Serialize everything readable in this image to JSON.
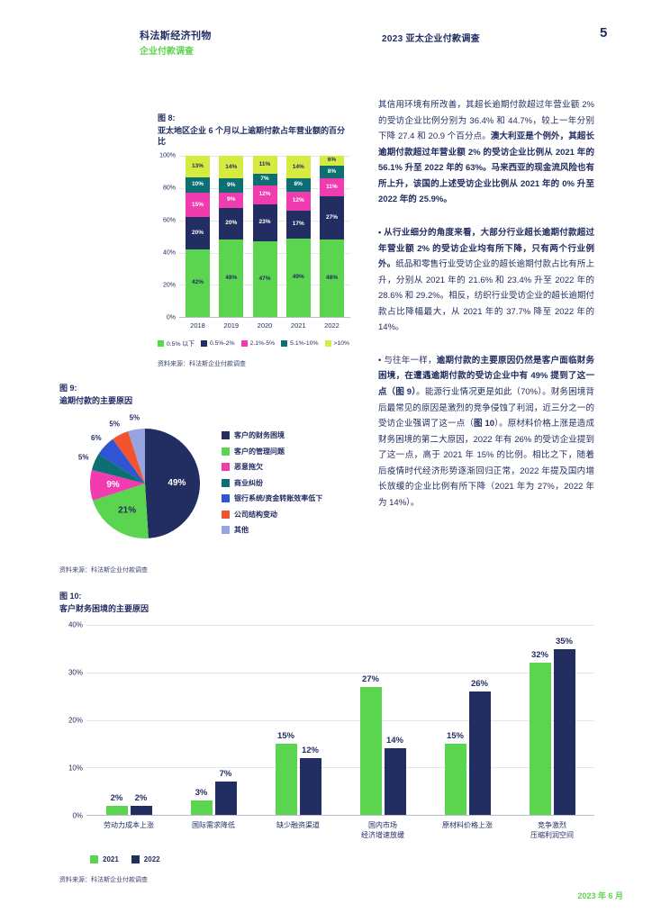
{
  "header": {
    "publication": "科法斯经济刊物",
    "subtitle": "企业付款调查",
    "report_title": "2023 亚太企业付款调查",
    "page_number": "5"
  },
  "colors": {
    "navy": "#222D62",
    "green": "#5BD54F",
    "magenta": "#F03CAE",
    "teal": "#0C7072",
    "lime": "#D6EB3F",
    "blue": "#2F55D4",
    "orange": "#F25430",
    "lavender": "#98A4E1"
  },
  "article": {
    "paragraphs": [
      {
        "runs": [
          {
            "text": "其信用环境有所改善，其超长逾期付款超过年营业额 2% 的受访企业比例分别为 36.4% 和 44.7%，较上一年分别下降 27.4 和 20.9 个百分点。",
            "bold": false
          },
          {
            "text": "澳大利亚是个例外，其超长逾期付款超过年营业额 2% 的受访企业比例从 2021 年的 56.1% 升至 2022 年的 63%。马来西亚的现金流风险也有所上升，该国的上述受访企业比例从 2021 年的 0% 升至 2022 年的 25.9%。",
            "bold": true
          }
        ]
      },
      {
        "runs": [
          {
            "text": "• 从行业细分的角度来看，大部分行业超长逾期付款超过年营业额 2% 的受访企业均有所下降，只有两个行业例外。",
            "bold": true
          },
          {
            "text": "纸品和零售行业受访企业的超长逾期付款占比有所上升，分别从 2021 年的 21.6% 和 23.4% 升至 2022 年的 28.6% 和 29.2%。相反，纺织行业受访企业的超长逾期付款占比降幅最大，从 2021 年的 37.7% 降至 2022 年的 14%。",
            "bold": false
          }
        ]
      },
      {
        "runs": [
          {
            "text": "• 与往年一样，",
            "bold": false
          },
          {
            "text": "逾期付款的主要原因仍然是客户面临财务困境，在遭遇逾期付款的受访企业中有 49% 提到了这一点（图 9）",
            "bold": true
          },
          {
            "text": "。能源行业情况更是如此（70%）。财务困境背后最常见的原因是激烈的竞争侵蚀了利润，近三分之一的受访企业强调了这一点（",
            "bold": false
          },
          {
            "text": "图 10",
            "bold": true
          },
          {
            "text": "）。原材料价格上涨是造成财务困境的第二大原因，2022 年有 26% 的受访企业提到了这一点，高于 2021 年 15% 的比例。相比之下，随着后疫情时代经济形势逐渐回归正常，2022 年提及国内增长放缓的企业比例有所下降（2021 年为 27%，2022 年为 14%）。",
            "bold": false
          }
        ]
      }
    ]
  },
  "chart_data": [
    {
      "id": "fig8",
      "type": "bar",
      "stacked": true,
      "figure_label": "图 8:",
      "title": "亚太地区企业 6 个月以上逾期付款占年营业额的百分比",
      "categories": [
        "2018",
        "2019",
        "2020",
        "2021",
        "2022"
      ],
      "series": [
        {
          "name": "0.5% 以下",
          "color_key": "green",
          "values": [
            42,
            48,
            47,
            49,
            48
          ]
        },
        {
          "name": "0.5%-2%",
          "color_key": "navy",
          "values": [
            20,
            20,
            23,
            17,
            27
          ]
        },
        {
          "name": "2.1%-5%",
          "color_key": "magenta",
          "values": [
            15,
            9,
            12,
            12,
            11
          ]
        },
        {
          "name": "5.1%-10%",
          "color_key": "teal",
          "values": [
            10,
            9,
            7,
            8,
            8
          ]
        },
        {
          "name": ">10%",
          "color_key": "lime",
          "values": [
            13,
            14,
            11,
            14,
            6
          ]
        }
      ],
      "y_ticks": [
        "100%",
        "80%",
        "60%",
        "40%",
        "20%",
        "0%"
      ],
      "ylim": [
        0,
        100
      ],
      "grid": true,
      "legend_position": "bottom",
      "source": "资料来源：科法斯企业付款调查"
    },
    {
      "id": "fig9",
      "type": "pie",
      "figure_label": "图 9:",
      "title": "逾期付款的主要原因",
      "slices": [
        {
          "label": "客户的财务困境",
          "value": 49,
          "color_key": "navy"
        },
        {
          "label": "客户的管理问题",
          "value": 21,
          "color_key": "green"
        },
        {
          "label": "恶意拖欠",
          "value": 9,
          "color_key": "magenta"
        },
        {
          "label": "商业纠纷",
          "value": 5,
          "color_key": "teal"
        },
        {
          "label": "银行系统/资金转账效率低下",
          "value": 6,
          "color_key": "blue"
        },
        {
          "label": "公司结构变动",
          "value": 5,
          "color_key": "orange"
        },
        {
          "label": "其他",
          "value": 5,
          "color_key": "lavender"
        }
      ],
      "legend_position": "right",
      "source": "资料来源：科法斯企业付款调查"
    },
    {
      "id": "fig10",
      "type": "bar",
      "grouped": true,
      "figure_label": "图 10:",
      "title": "客户财务困境的主要原因",
      "categories": [
        "劳动力成本上涨",
        "国际需求降低",
        "缺少融资渠道",
        "国内市场\n经济增速放缓",
        "原材料价格上涨",
        "竞争激烈\n压缩利润空间"
      ],
      "series": [
        {
          "name": "2021",
          "color_key": "green",
          "values": [
            2,
            3,
            15,
            27,
            15,
            32
          ]
        },
        {
          "name": "2022",
          "color_key": "navy",
          "values": [
            2,
            7,
            12,
            14,
            26,
            35
          ]
        }
      ],
      "y_ticks": [
        "40%",
        "30%",
        "20%",
        "10%",
        "0%"
      ],
      "ylim": [
        0,
        40
      ],
      "grid": true,
      "legend_position": "bottom-left",
      "source": "资料来源：科法斯企业付款调查"
    }
  ],
  "footer": {
    "date": "2023 年 6 月"
  }
}
